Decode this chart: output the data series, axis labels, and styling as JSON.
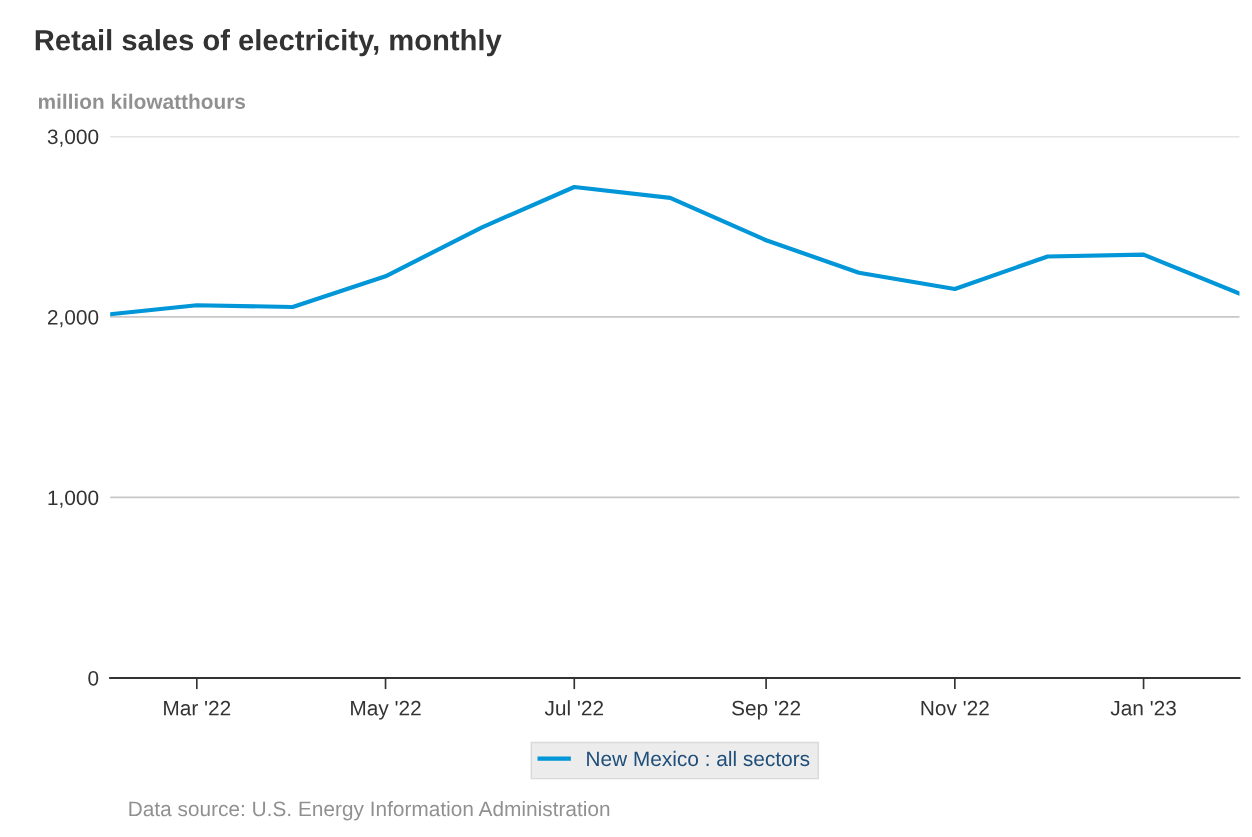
{
  "chart_data": {
    "type": "line",
    "title": "Retail sales of electricity, monthly",
    "ylabel": "million kilowatthours",
    "x": [
      "2022-02",
      "2022-03",
      "2022-04",
      "2022-05",
      "2022-06",
      "2022-07",
      "2022-08",
      "2022-09",
      "2022-10",
      "2022-11",
      "2022-12",
      "2023-01",
      "2023-02"
    ],
    "series": [
      {
        "name": "New Mexico : all sectors",
        "color": "#0096d7",
        "values": [
          2015,
          2065,
          2055,
          2225,
          2495,
          2720,
          2660,
          2425,
          2245,
          2155,
          2335,
          2345,
          2130
        ]
      }
    ],
    "xlim": [
      "2022-02",
      "2023-02"
    ],
    "xticks": [
      {
        "value": "2022-03",
        "label": "Mar '22"
      },
      {
        "value": "2022-05",
        "label": "May '22"
      },
      {
        "value": "2022-07",
        "label": "Jul '22"
      },
      {
        "value": "2022-09",
        "label": "Sep '22"
      },
      {
        "value": "2022-11",
        "label": "Nov '22"
      },
      {
        "value": "2023-01",
        "label": "Jan '23"
      }
    ],
    "ylim": [
      0,
      3000
    ],
    "yticks": [
      {
        "value": 0,
        "label": "0"
      },
      {
        "value": 1000,
        "label": "1,000"
      },
      {
        "value": 2000,
        "label": "2,000"
      },
      {
        "value": 3000,
        "label": "3,000"
      }
    ],
    "grid": "y",
    "legend": "bottom",
    "marker": "none",
    "line_style": "solid",
    "annotations": [
      "Data source: U.S. Energy Information Administration"
    ]
  }
}
